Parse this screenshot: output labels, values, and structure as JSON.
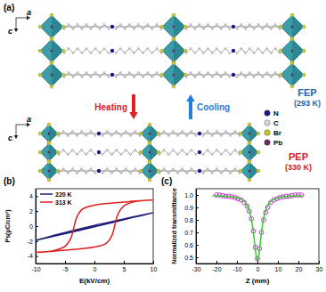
{
  "diagram": {
    "panel_label": "(a)",
    "axes": [
      "a",
      "c"
    ],
    "structures": [
      {
        "name": "FEP",
        "temperature": "(293 K)",
        "color": "#2a62b0"
      },
      {
        "name": "PEP",
        "temperature": "(330 K)",
        "color": "#d42020"
      }
    ],
    "transitions": [
      {
        "label": "Heating",
        "color": "#e02020"
      },
      {
        "label": "Cooling",
        "color": "#2080e0"
      }
    ],
    "legend": [
      {
        "label": "N",
        "color": "#1a1a8c"
      },
      {
        "label": "C",
        "color": "#d8d8d8"
      },
      {
        "label": "Br",
        "color": "#c8c820"
      },
      {
        "label": "Pb",
        "color": "#6a2a6a"
      }
    ]
  },
  "chart_data": [
    {
      "type": "line",
      "title": "(b)",
      "x_label": "E(kV/cm)",
      "y_label": "Ps(μC/cm²)",
      "xlim": [
        -10,
        10
      ],
      "xticks": [
        -10,
        -5,
        0,
        5,
        10
      ],
      "ylim": [
        -5,
        5
      ],
      "yticks": [
        -4,
        -2,
        0,
        2,
        4
      ],
      "legend": "upper left",
      "series": [
        {
          "name": "220 K",
          "color": "#1f1f7a",
          "x": [
            -10,
            -5,
            0,
            5,
            10,
            5,
            0,
            -5,
            -10
          ],
          "values": [
            -1.9,
            -1.0,
            -0.1,
            0.85,
            1.8,
            0.95,
            0.1,
            -0.85,
            -1.9
          ]
        },
        {
          "name": "313 K",
          "color": "#e02020",
          "x": [
            -10,
            -7,
            -5,
            0,
            2,
            3,
            3.5,
            4,
            5,
            7,
            10,
            7,
            5,
            0,
            -2,
            -3,
            -3.5,
            -4,
            -5,
            -7,
            -10
          ],
          "values": [
            -3.5,
            -3.35,
            -3.2,
            -2.8,
            -2.3,
            -1.2,
            0.2,
            1.6,
            2.7,
            3.3,
            3.5,
            3.35,
            3.2,
            2.8,
            2.3,
            1.2,
            -0.2,
            -1.6,
            -2.7,
            -3.3,
            -3.5
          ]
        }
      ]
    },
    {
      "type": "scatter",
      "title": "(c)",
      "x_label": "Z (mm)",
      "y_label": "Normalized transmittance",
      "xlim": [
        -30,
        30
      ],
      "xticks": [
        -30,
        -20,
        -10,
        0,
        10,
        20,
        30
      ],
      "ylim": [
        0.45,
        1.05
      ],
      "yticks": [
        0.5,
        0.6,
        0.7,
        0.8,
        0.9,
        {
          "value": 1,
          "label": "1.0"
        }
      ],
      "series": [
        {
          "type": "scatter",
          "marker": "circle",
          "color": "#cc33cc",
          "x": [
            -20,
            -18.5,
            -17,
            -15.5,
            -14,
            -12.5,
            -11,
            -9.5,
            -8,
            -6.5,
            -5,
            -4,
            -3,
            -2,
            -1,
            0,
            1,
            2,
            3,
            4,
            5,
            6.5,
            8,
            9.5,
            11,
            12.5,
            14,
            15.5,
            17,
            18.5,
            20,
            21.5
          ],
          "values": [
            1.0,
            1.0,
            0.995,
            0.99,
            0.99,
            0.985,
            0.98,
            0.97,
            0.96,
            0.94,
            0.91,
            0.87,
            0.81,
            0.71,
            0.58,
            0.49,
            0.57,
            0.7,
            0.8,
            0.86,
            0.9,
            0.94,
            0.96,
            0.97,
            0.98,
            0.985,
            0.99,
            0.99,
            0.995,
            1.0,
            1.0,
            1.0
          ]
        },
        {
          "type": "line",
          "color": "#33cc33",
          "x": [
            -22,
            -16,
            -12,
            -9,
            -7,
            -5,
            -4,
            -3,
            -2,
            -1.5,
            -1,
            -0.5,
            0,
            0.5,
            1,
            1.5,
            2,
            3,
            4,
            5,
            7,
            9,
            12,
            16,
            22
          ],
          "values": [
            0.995,
            0.99,
            0.985,
            0.97,
            0.955,
            0.915,
            0.875,
            0.81,
            0.7,
            0.63,
            0.56,
            0.5,
            0.48,
            0.5,
            0.56,
            0.63,
            0.7,
            0.81,
            0.875,
            0.915,
            0.955,
            0.97,
            0.985,
            0.99,
            0.995
          ]
        }
      ]
    }
  ]
}
